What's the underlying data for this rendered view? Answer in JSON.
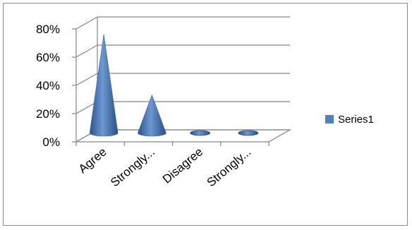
{
  "chart_data": {
    "type": "bar",
    "style": "3d-cone",
    "categories": [
      "Agree",
      "Strongly...",
      "Disagree",
      "Strongly..."
    ],
    "series": [
      {
        "name": "Series1",
        "values": [
          0.7,
          0.27,
          0.0,
          0.0
        ]
      }
    ],
    "y_ticks": [
      "0%",
      "20%",
      "40%",
      "60%",
      "80%"
    ],
    "ylim": [
      0,
      0.8
    ],
    "grid": true,
    "legend_position": "right",
    "colors": {
      "series1": "#4f81bd",
      "grid": "#868686"
    }
  }
}
